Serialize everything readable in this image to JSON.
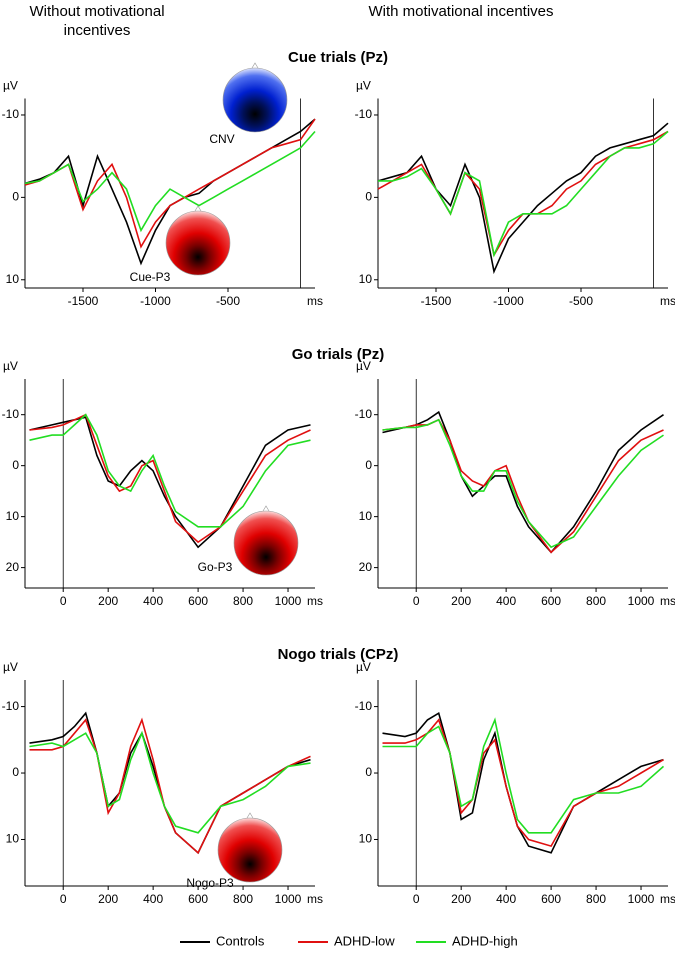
{
  "headers": [
    "Without motivational incentives",
    "With motivational incentives"
  ],
  "section_titles": [
    "Cue trials (Pz)",
    "Go trials (Pz)",
    "Nogo trials (CPz)"
  ],
  "chart_data": [
    {
      "type": "line",
      "x_label": "ms",
      "y_label": "µV",
      "annotations": [
        "CNV",
        "Cue-P3"
      ],
      "x": [
        -1900,
        -1800,
        -1700,
        -1600,
        -1500,
        -1400,
        -1300,
        -1200,
        -1100,
        -1000,
        -900,
        -800,
        -700,
        -600,
        -500,
        -400,
        -300,
        -200,
        -100,
        0,
        100
      ],
      "series": [
        {
          "name": "Controls",
          "color": "#000000",
          "values": [
            -1.7,
            -2.2,
            -3,
            -5,
            1,
            -5,
            -1,
            3,
            8,
            4,
            1,
            0,
            -0.5,
            -2,
            -3,
            -4,
            -5,
            -6,
            -7,
            -8,
            -9.5
          ]
        },
        {
          "name": "ADHD-low",
          "color": "#e01010",
          "values": [
            -1.5,
            -2,
            -3,
            -4,
            1.5,
            -2,
            -4,
            0,
            6,
            3,
            1,
            0,
            -1,
            -2,
            -3,
            -4,
            -5,
            -6,
            -6.5,
            -7,
            -9.5
          ]
        },
        {
          "name": "ADHD-high",
          "color": "#22dd22",
          "values": [
            -1.7,
            -2,
            -3,
            -4,
            0.5,
            -1,
            -3,
            -1,
            4,
            1,
            -1,
            0,
            1,
            0,
            -1,
            -2,
            -3,
            -4,
            -5,
            -6,
            -8
          ]
        }
      ],
      "xlim": [
        -1900,
        100
      ],
      "ylim": [
        11,
        -12
      ],
      "xticks": [
        -1500,
        -1000,
        -500
      ],
      "yticks": [
        -10,
        0,
        10
      ]
    },
    {
      "type": "line",
      "x_label": "ms",
      "y_label": "µV",
      "x": [
        -1900,
        -1800,
        -1700,
        -1600,
        -1500,
        -1400,
        -1300,
        -1200,
        -1100,
        -1000,
        -900,
        -800,
        -700,
        -600,
        -500,
        -400,
        -300,
        -200,
        -100,
        0,
        100
      ],
      "series": [
        {
          "name": "Controls",
          "color": "#000000",
          "values": [
            -2,
            -2.5,
            -3,
            -5,
            -1,
            1,
            -4,
            0,
            9,
            5,
            3,
            1,
            -0.5,
            -2,
            -3,
            -5,
            -6,
            -6.5,
            -7,
            -7.5,
            -9
          ]
        },
        {
          "name": "ADHD-low",
          "color": "#e01010",
          "values": [
            -1,
            -2,
            -3,
            -4,
            -1,
            2,
            -3,
            -1,
            7,
            4,
            2,
            2,
            1,
            -1,
            -2,
            -4,
            -5,
            -6,
            -6.5,
            -7,
            -8
          ]
        },
        {
          "name": "ADHD-high",
          "color": "#22dd22",
          "values": [
            -2,
            -2,
            -2.5,
            -3.5,
            -1,
            2,
            -3,
            -2,
            7,
            3,
            2,
            2,
            2,
            1,
            -1,
            -3,
            -5,
            -6,
            -6,
            -6.5,
            -8
          ]
        }
      ],
      "xlim": [
        -1900,
        100
      ],
      "ylim": [
        11,
        -12
      ],
      "xticks": [
        -1500,
        -1000,
        -500
      ],
      "yticks": [
        -10,
        0,
        10
      ]
    },
    {
      "type": "line",
      "x_label": "ms",
      "y_label": "µV",
      "annotations": [
        "Go-P3"
      ],
      "x": [
        -150,
        -50,
        0,
        50,
        100,
        150,
        200,
        250,
        300,
        350,
        400,
        450,
        500,
        600,
        700,
        800,
        900,
        1000,
        1100
      ],
      "series": [
        {
          "name": "Controls",
          "color": "#000000",
          "values": [
            -7,
            -8,
            -8.5,
            -9,
            -9.5,
            -2,
            3,
            4,
            1,
            -1,
            1,
            6,
            10,
            16,
            12,
            4,
            -4,
            -7,
            -8
          ]
        },
        {
          "name": "ADHD-low",
          "color": "#e01010",
          "values": [
            -7,
            -7.5,
            -8,
            -9,
            -10,
            -4,
            2,
            5,
            4,
            0,
            -1,
            5,
            11,
            15,
            12,
            5,
            -2,
            -5,
            -7
          ]
        },
        {
          "name": "ADHD-high",
          "color": "#22dd22",
          "values": [
            -5,
            -6,
            -6,
            -8,
            -10,
            -6,
            1,
            4,
            5,
            1,
            -2,
            4,
            9,
            12,
            12,
            8,
            1,
            -4,
            -5
          ]
        }
      ],
      "xlim": [
        -170,
        1120
      ],
      "ylim": [
        24,
        -17
      ],
      "xticks": [
        0,
        200,
        400,
        600,
        800,
        1000
      ],
      "yticks": [
        -10,
        0,
        10,
        20
      ]
    },
    {
      "type": "line",
      "x_label": "ms",
      "y_label": "µV",
      "x": [
        -150,
        -50,
        0,
        50,
        100,
        150,
        200,
        250,
        300,
        350,
        400,
        450,
        500,
        600,
        700,
        800,
        900,
        1000,
        1100
      ],
      "series": [
        {
          "name": "Controls",
          "color": "#000000",
          "values": [
            -6.5,
            -7.5,
            -8,
            -9,
            -10.5,
            -5,
            2,
            6,
            4,
            2,
            2,
            8,
            12,
            17,
            12,
            5,
            -3,
            -7,
            -10
          ]
        },
        {
          "name": "ADHD-low",
          "color": "#e01010",
          "values": [
            -7,
            -7.5,
            -8,
            -8,
            -9,
            -5,
            1,
            3,
            4,
            1,
            0,
            6,
            11,
            17,
            13,
            6,
            -1,
            -5,
            -7
          ]
        },
        {
          "name": "ADHD-high",
          "color": "#22dd22",
          "values": [
            -7,
            -7.5,
            -7.5,
            -8,
            -9,
            -4,
            2,
            5,
            5,
            1,
            1,
            7,
            11,
            16,
            14,
            8,
            2,
            -3,
            -6
          ]
        }
      ],
      "xlim": [
        -170,
        1120
      ],
      "ylim": [
        24,
        -17
      ],
      "xticks": [
        0,
        200,
        400,
        600,
        800,
        1000
      ],
      "yticks": [
        -10,
        0,
        10,
        20
      ]
    },
    {
      "type": "line",
      "x_label": "ms",
      "y_label": "µV",
      "annotations": [
        "Nogo-P3"
      ],
      "x": [
        -150,
        -50,
        0,
        50,
        100,
        150,
        200,
        250,
        300,
        350,
        400,
        450,
        500,
        600,
        700,
        800,
        900,
        1000,
        1100
      ],
      "series": [
        {
          "name": "Controls",
          "color": "#000000",
          "values": [
            -4.5,
            -5,
            -5.5,
            -7,
            -9,
            -3,
            5,
            3,
            -3,
            -6,
            -1,
            5,
            9,
            12,
            5,
            3,
            1,
            -1,
            -2
          ]
        },
        {
          "name": "ADHD-low",
          "color": "#e01010",
          "values": [
            -3.5,
            -3.5,
            -4,
            -6,
            -8,
            -3,
            6,
            3,
            -4,
            -8,
            -2,
            5,
            9,
            12,
            5,
            3,
            1,
            -1,
            -2.5
          ]
        },
        {
          "name": "ADHD-high",
          "color": "#22dd22",
          "values": [
            -4,
            -4.5,
            -4,
            -5,
            -6,
            -3,
            5,
            4,
            -2,
            -6,
            0,
            5,
            8,
            9,
            5,
            4,
            2,
            -1,
            -1.5
          ]
        }
      ],
      "xlim": [
        -170,
        1120
      ],
      "ylim": [
        17,
        -14
      ],
      "xticks": [
        0,
        200,
        400,
        600,
        800,
        1000
      ],
      "yticks": [
        -10,
        0,
        10
      ]
    },
    {
      "type": "line",
      "x_label": "ms",
      "y_label": "µV",
      "x": [
        -150,
        -50,
        0,
        50,
        100,
        150,
        200,
        250,
        300,
        350,
        400,
        450,
        500,
        600,
        700,
        800,
        900,
        1000,
        1100
      ],
      "series": [
        {
          "name": "Controls",
          "color": "#000000",
          "values": [
            -6,
            -5.5,
            -6,
            -8,
            -9,
            -3,
            7,
            6,
            -2,
            -6,
            2,
            8,
            11,
            12,
            5,
            3,
            1,
            -1,
            -2
          ]
        },
        {
          "name": "ADHD-low",
          "color": "#e01010",
          "values": [
            -4.5,
            -4.5,
            -5,
            -6,
            -8,
            -3,
            6,
            4,
            -3,
            -5,
            2,
            8,
            10,
            11,
            5,
            3,
            2,
            0,
            -2
          ]
        },
        {
          "name": "ADHD-high",
          "color": "#22dd22",
          "values": [
            -4,
            -4,
            -4,
            -6,
            -7,
            -3,
            5,
            4,
            -4,
            -8,
            0,
            7,
            9,
            9,
            4,
            3,
            3,
            2,
            -1
          ]
        }
      ],
      "xlim": [
        -170,
        1120
      ],
      "ylim": [
        17,
        -14
      ],
      "xticks": [
        0,
        200,
        400,
        600,
        800,
        1000
      ],
      "yticks": [
        -10,
        0,
        10
      ]
    }
  ]
}
